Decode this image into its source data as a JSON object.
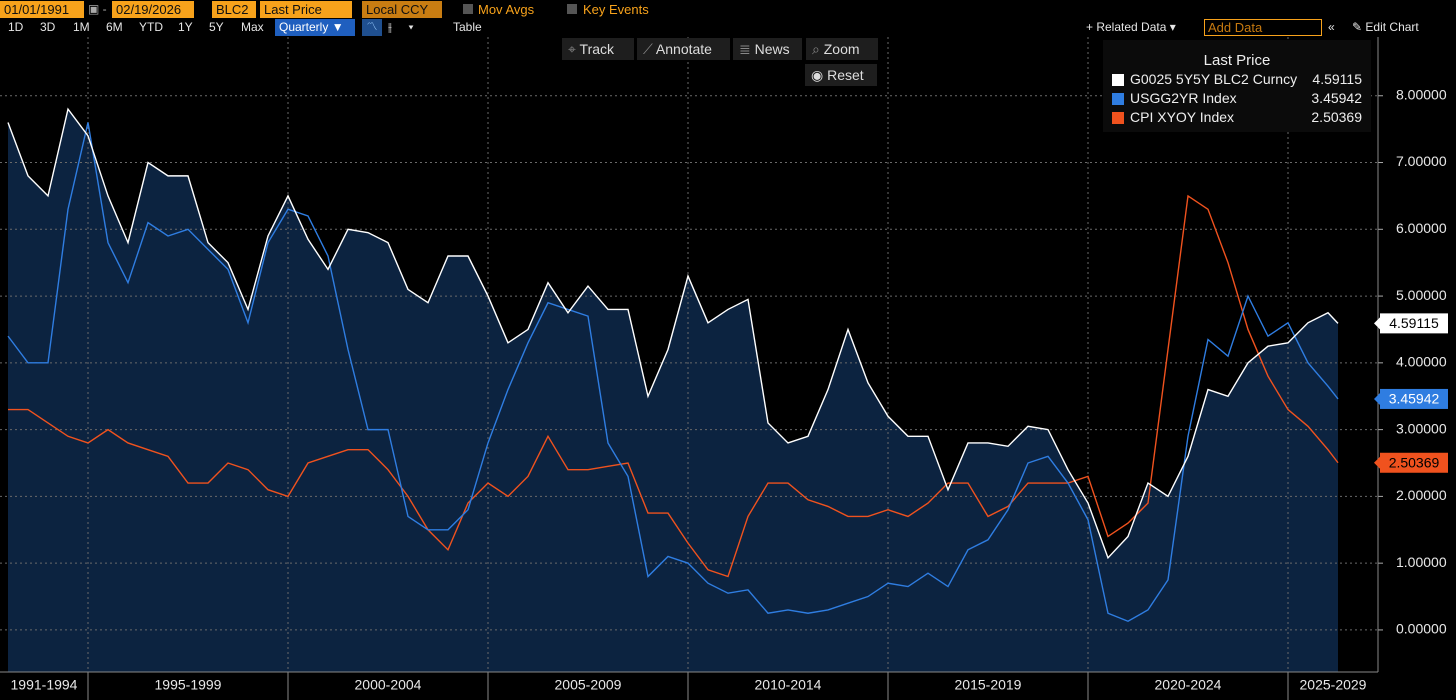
{
  "toolbar": {
    "start_date": "01/01/1991",
    "end_date": "02/19/2026",
    "source": "BLC2",
    "field": "Last Price",
    "currency": "Local CCY",
    "mov_avgs": "Mov Avgs",
    "key_events": "Key Events",
    "periods": [
      "1D",
      "3D",
      "1M",
      "6M",
      "YTD",
      "1Y",
      "5Y",
      "Max"
    ],
    "frequency": "Quarterly",
    "table": "Table",
    "related_data": "Related Data",
    "add_data": "Add Data",
    "edit_chart": "Edit Chart"
  },
  "chart_tools": [
    "Track",
    "Annotate",
    "News",
    "Zoom"
  ],
  "reset": "Reset",
  "chart_data": {
    "type": "line",
    "legend_title": "Last Price",
    "grid": true,
    "legend": "top-right",
    "x": [
      1993,
      1993.5,
      1994,
      1994.5,
      1995,
      1995.5,
      1996,
      1996.5,
      1997,
      1997.5,
      1998,
      1998.5,
      1999,
      1999.5,
      2000,
      2000.5,
      2001,
      2001.5,
      2002,
      2002.5,
      2003,
      2003.5,
      2004,
      2004.5,
      2005,
      2005.5,
      2006,
      2006.5,
      2007,
      2007.5,
      2008,
      2008.5,
      2009,
      2009.5,
      2010,
      2010.5,
      2011,
      2011.5,
      2012,
      2012.5,
      2013,
      2013.5,
      2014,
      2014.5,
      2015,
      2015.5,
      2016,
      2016.5,
      2017,
      2017.5,
      2018,
      2018.5,
      2019,
      2019.5,
      2020,
      2020.5,
      2021,
      2021.5,
      2022,
      2022.5,
      2023,
      2023.5,
      2024,
      2024.5,
      2025,
      2025.5,
      2026,
      2026.25
    ],
    "xlim": [
      1992.8,
      2027.25
    ],
    "xticks": [
      {
        "value": 1991,
        "label": "1991-1994"
      },
      {
        "value": 1995,
        "label": "1995-1999"
      },
      {
        "value": 2000,
        "label": "2000-2004"
      },
      {
        "value": 2005,
        "label": "2005-2009"
      },
      {
        "value": 2010,
        "label": "2010-2014"
      },
      {
        "value": 2015,
        "label": "2015-2019"
      },
      {
        "value": 2020,
        "label": "2020-2024"
      },
      {
        "value": 2025,
        "label": "2025-2029"
      }
    ],
    "ylim": [
      -0.63,
      8.88
    ],
    "yticks": [
      {
        "value": 0,
        "label": "0.00000"
      },
      {
        "value": 1,
        "label": "1.00000"
      },
      {
        "value": 2,
        "label": "2.00000"
      },
      {
        "value": 3,
        "label": "3.00000"
      },
      {
        "value": 4,
        "label": "4.00000"
      },
      {
        "value": 5,
        "label": "5.00000"
      },
      {
        "value": 6,
        "label": "6.00000"
      },
      {
        "value": 7,
        "label": "7.00000"
      },
      {
        "value": 8,
        "label": "8.00000"
      }
    ],
    "series": [
      {
        "name": "G0025 5Y5Y BLC2 Curncy",
        "color": "#ffffff",
        "fill": "#0c2340",
        "values": [
          7.6,
          6.8,
          6.5,
          7.8,
          7.4,
          6.5,
          5.8,
          7.0,
          6.8,
          6.8,
          5.8,
          5.5,
          4.8,
          5.9,
          6.5,
          5.85,
          5.4,
          6.0,
          5.95,
          5.8,
          5.1,
          4.9,
          5.6,
          5.6,
          5.0,
          4.3,
          4.5,
          5.2,
          4.75,
          5.15,
          4.8,
          4.8,
          3.5,
          4.2,
          5.3,
          4.6,
          4.8,
          4.95,
          3.1,
          2.8,
          2.9,
          3.6,
          4.5,
          3.7,
          3.2,
          2.9,
          2.9,
          2.1,
          2.8,
          2.8,
          2.75,
          3.05,
          3.0,
          2.4,
          1.9,
          1.08,
          1.4,
          2.2,
          2.0,
          2.6,
          3.6,
          3.5,
          4.0,
          4.25,
          4.3,
          4.6,
          4.75,
          4.59115
        ]
      },
      {
        "name": "USGG2YR Index",
        "color": "#2f7de1",
        "values": [
          4.4,
          4.0,
          4.0,
          6.3,
          7.6,
          5.8,
          5.2,
          6.1,
          5.9,
          6.0,
          5.7,
          5.4,
          4.6,
          5.8,
          6.3,
          6.2,
          5.6,
          4.2,
          3.0,
          3.0,
          1.7,
          1.5,
          1.5,
          1.8,
          2.8,
          3.6,
          4.3,
          4.9,
          4.8,
          4.7,
          2.8,
          2.3,
          0.8,
          1.1,
          1.0,
          0.7,
          0.55,
          0.6,
          0.25,
          0.3,
          0.25,
          0.3,
          0.4,
          0.5,
          0.7,
          0.65,
          0.85,
          0.65,
          1.2,
          1.35,
          1.8,
          2.5,
          2.6,
          2.2,
          1.65,
          0.25,
          0.13,
          0.3,
          0.75,
          2.9,
          4.35,
          4.1,
          5.0,
          4.4,
          4.6,
          4.0,
          3.65,
          3.45942
        ]
      },
      {
        "name": "CPI XYOY Index",
        "color": "#f0521e",
        "values": [
          3.3,
          3.3,
          3.1,
          2.9,
          2.8,
          3.0,
          2.8,
          2.7,
          2.6,
          2.2,
          2.2,
          2.5,
          2.4,
          2.1,
          2.0,
          2.5,
          2.6,
          2.7,
          2.7,
          2.4,
          2.0,
          1.5,
          1.2,
          1.9,
          2.2,
          2.0,
          2.3,
          2.9,
          2.4,
          2.4,
          2.45,
          2.5,
          1.75,
          1.75,
          1.3,
          0.9,
          0.8,
          1.7,
          2.2,
          2.2,
          1.95,
          1.85,
          1.7,
          1.7,
          1.8,
          1.7,
          1.9,
          2.2,
          2.2,
          1.7,
          1.85,
          2.2,
          2.2,
          2.2,
          2.3,
          1.4,
          1.6,
          1.9,
          4.2,
          6.5,
          6.3,
          5.5,
          4.5,
          3.8,
          3.3,
          3.05,
          2.7,
          2.50369
        ]
      }
    ]
  }
}
